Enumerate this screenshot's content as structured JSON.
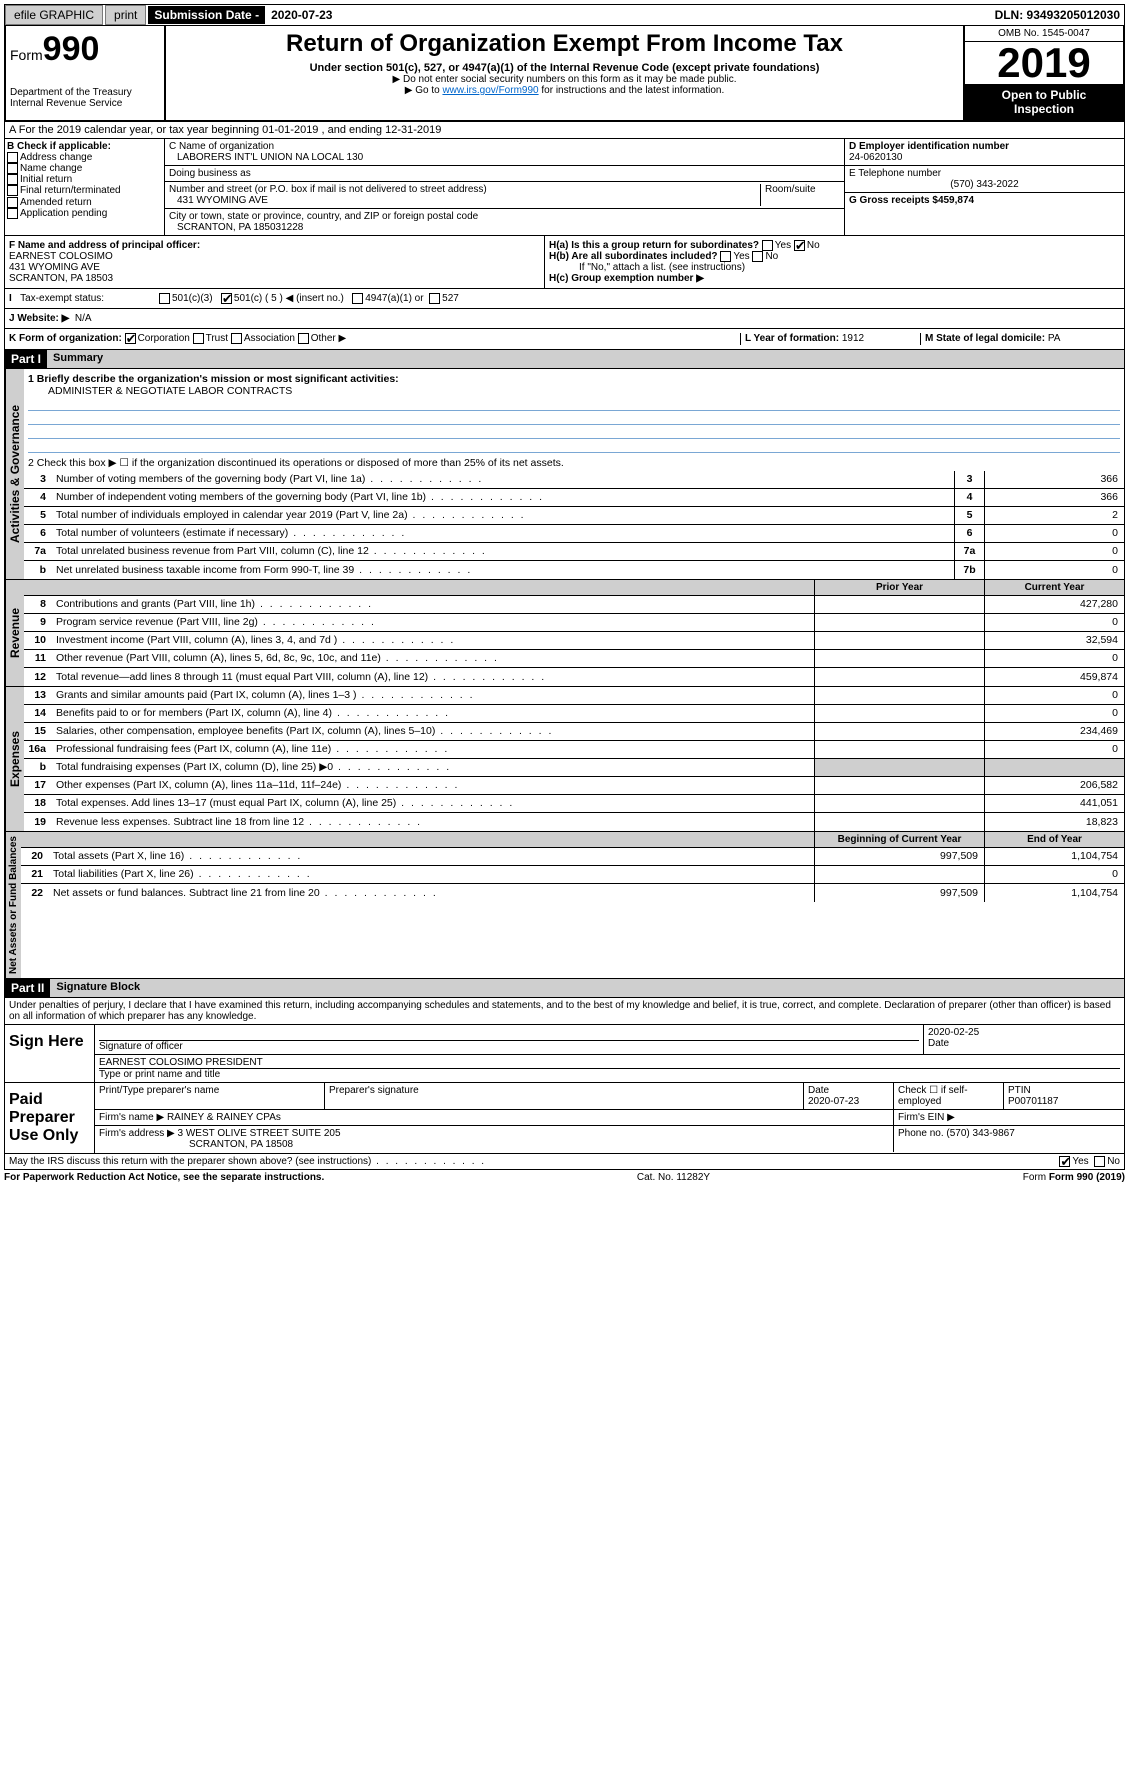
{
  "topbar": {
    "efile": "efile GRAPHIC",
    "print": "print",
    "sub_label": "Submission Date - ",
    "sub_date": "2020-07-23",
    "dln": "DLN: 93493205012030"
  },
  "header": {
    "form_word": "Form",
    "form_num": "990",
    "dept": "Department of the Treasury",
    "irs": "Internal Revenue Service",
    "title": "Return of Organization Exempt From Income Tax",
    "subtitle": "Under section 501(c), 527, or 4947(a)(1) of the Internal Revenue Code (except private foundations)",
    "note1": "▶ Do not enter social security numbers on this form as it may be made public.",
    "note2_pre": "▶ Go to ",
    "note2_link": "www.irs.gov/Form990",
    "note2_post": " for instructions and the latest information.",
    "omb": "OMB No. 1545-0047",
    "year": "2019",
    "inspect1": "Open to Public",
    "inspect2": "Inspection"
  },
  "lineA": "A For the 2019 calendar year, or tax year beginning 01-01-2019   , and ending 12-31-2019",
  "colB": {
    "title": "B Check if applicable:",
    "items": [
      "Address change",
      "Name change",
      "Initial return",
      "Final return/terminated",
      "Amended return",
      "Application pending"
    ]
  },
  "colC": {
    "name_label": "C Name of organization",
    "name": "LABORERS INT'L UNION NA LOCAL 130",
    "dba": "Doing business as",
    "addr_label": "Number and street (or P.O. box if mail is not delivered to street address)",
    "room": "Room/suite",
    "addr": "431 WYOMING AVE",
    "city_label": "City or town, state or province, country, and ZIP or foreign postal code",
    "city": "SCRANTON, PA  185031228"
  },
  "colD": {
    "ein_label": "D Employer identification number",
    "ein": "24-0620130",
    "tel_label": "E Telephone number",
    "tel": "(570) 343-2022",
    "gross_label": "G Gross receipts $",
    "gross": "459,874"
  },
  "colF": {
    "label": "F  Name and address of principal officer:",
    "name": "EARNEST COLOSIMO",
    "addr1": "431 WYOMING AVE",
    "addr2": "SCRANTON, PA  18503"
  },
  "colH": {
    "ha": "H(a)  Is this a group return for subordinates?",
    "hb": "H(b)  Are all subordinates included?",
    "hb_note": "If \"No,\" attach a list. (see instructions)",
    "hc": "H(c)  Group exemption number ▶",
    "yes": "Yes",
    "no": "No"
  },
  "rowI": {
    "label": "Tax-exempt status:",
    "c3": "501(c)(3)",
    "c5": "501(c) ( 5 ) ◀ (insert no.)",
    "a1": "4947(a)(1) or",
    "s527": "527"
  },
  "rowJ": {
    "label": "J  Website: ▶",
    "val": "N/A"
  },
  "rowK": {
    "label": "K Form of organization:",
    "corp": "Corporation",
    "trust": "Trust",
    "assoc": "Association",
    "other": "Other ▶",
    "l": "L Year of formation:",
    "lval": "1912",
    "m": "M State of legal domicile:",
    "mval": "PA"
  },
  "part1": {
    "hdr": "Part I",
    "title": "Summary",
    "q1": "1   Briefly describe the organization's mission or most significant activities:",
    "mission": "ADMINISTER & NEGOTIATE LABOR CONTRACTS",
    "q2": "2    Check this box ▶ ☐  if the organization discontinued its operations or disposed of more than 25% of its net assets.",
    "rows_gov": [
      {
        "n": "3",
        "desc": "Number of voting members of the governing body (Part VI, line 1a)",
        "box": "3",
        "v": "366"
      },
      {
        "n": "4",
        "desc": "Number of independent voting members of the governing body (Part VI, line 1b)",
        "box": "4",
        "v": "366"
      },
      {
        "n": "5",
        "desc": "Total number of individuals employed in calendar year 2019 (Part V, line 2a)",
        "box": "5",
        "v": "2"
      },
      {
        "n": "6",
        "desc": "Total number of volunteers (estimate if necessary)",
        "box": "6",
        "v": "0"
      },
      {
        "n": "7a",
        "desc": "Total unrelated business revenue from Part VIII, column (C), line 12",
        "box": "7a",
        "v": "0"
      },
      {
        "n": "b",
        "desc": "Net unrelated business taxable income from Form 990-T, line 39",
        "box": "7b",
        "v": "0"
      }
    ],
    "prior": "Prior Year",
    "current": "Current Year",
    "rows_rev": [
      {
        "n": "8",
        "desc": "Contributions and grants (Part VIII, line 1h)",
        "p": "",
        "c": "427,280"
      },
      {
        "n": "9",
        "desc": "Program service revenue (Part VIII, line 2g)",
        "p": "",
        "c": "0"
      },
      {
        "n": "10",
        "desc": "Investment income (Part VIII, column (A), lines 3, 4, and 7d )",
        "p": "",
        "c": "32,594"
      },
      {
        "n": "11",
        "desc": "Other revenue (Part VIII, column (A), lines 5, 6d, 8c, 9c, 10c, and 11e)",
        "p": "",
        "c": "0"
      },
      {
        "n": "12",
        "desc": "Total revenue—add lines 8 through 11 (must equal Part VIII, column (A), line 12)",
        "p": "",
        "c": "459,874"
      }
    ],
    "rows_exp": [
      {
        "n": "13",
        "desc": "Grants and similar amounts paid (Part IX, column (A), lines 1–3 )",
        "p": "",
        "c": "0"
      },
      {
        "n": "14",
        "desc": "Benefits paid to or for members (Part IX, column (A), line 4)",
        "p": "",
        "c": "0"
      },
      {
        "n": "15",
        "desc": "Salaries, other compensation, employee benefits (Part IX, column (A), lines 5–10)",
        "p": "",
        "c": "234,469"
      },
      {
        "n": "16a",
        "desc": "Professional fundraising fees (Part IX, column (A), line 11e)",
        "p": "",
        "c": "0"
      },
      {
        "n": "b",
        "desc": "Total fundraising expenses (Part IX, column (D), line 25) ▶0",
        "p": "shade",
        "c": "shade"
      },
      {
        "n": "17",
        "desc": "Other expenses (Part IX, column (A), lines 11a–11d, 11f–24e)",
        "p": "",
        "c": "206,582"
      },
      {
        "n": "18",
        "desc": "Total expenses. Add lines 13–17 (must equal Part IX, column (A), line 25)",
        "p": "",
        "c": "441,051"
      },
      {
        "n": "19",
        "desc": "Revenue less expenses. Subtract line 18 from line 12",
        "p": "",
        "c": "18,823"
      }
    ],
    "begin": "Beginning of Current Year",
    "end": "End of Year",
    "rows_net": [
      {
        "n": "20",
        "desc": "Total assets (Part X, line 16)",
        "p": "997,509",
        "c": "1,104,754"
      },
      {
        "n": "21",
        "desc": "Total liabilities (Part X, line 26)",
        "p": "",
        "c": "0"
      },
      {
        "n": "22",
        "desc": "Net assets or fund balances. Subtract line 21 from line 20",
        "p": "997,509",
        "c": "1,104,754"
      }
    ]
  },
  "sidebars": {
    "gov": "Activities & Governance",
    "rev": "Revenue",
    "exp": "Expenses",
    "net": "Net Assets or Fund Balances"
  },
  "part2": {
    "hdr": "Part II",
    "title": "Signature Block",
    "perjury": "Under penalties of perjury, I declare that I have examined this return, including accompanying schedules and statements, and to the best of my knowledge and belief, it is true, correct, and complete. Declaration of preparer (other than officer) is based on all information of which preparer has any knowledge.",
    "sign_here": "Sign Here",
    "sig_officer": "Signature of officer",
    "sig_date": "2020-02-25",
    "sig_date_lbl": "Date",
    "sig_name": "EARNEST COLOSIMO  PRESIDENT",
    "sig_name_lbl": "Type or print name and title",
    "paid": "Paid Preparer Use Only",
    "prep_name_lbl": "Print/Type preparer's name",
    "prep_sig_lbl": "Preparer's signature",
    "prep_date_lbl": "Date",
    "prep_date": "2020-07-23",
    "check_lbl": "Check ☐ if self-employed",
    "ptin_lbl": "PTIN",
    "ptin": "P00701187",
    "firm_name_lbl": "Firm's name   ▶",
    "firm_name": "RAINEY & RAINEY CPAs",
    "firm_ein_lbl": "Firm's EIN ▶",
    "firm_addr_lbl": "Firm's address ▶",
    "firm_addr": "3 WEST OLIVE STREET SUITE 205",
    "firm_city": "SCRANTON, PA  18508",
    "firm_phone_lbl": "Phone no.",
    "firm_phone": "(570) 343-9867",
    "discuss": "May the IRS discuss this return with the preparer shown above? (see instructions)",
    "yes": "Yes",
    "no": "No"
  },
  "footer": {
    "pra": "For Paperwork Reduction Act Notice, see the separate instructions.",
    "cat": "Cat. No. 11282Y",
    "form": "Form 990 (2019)"
  }
}
